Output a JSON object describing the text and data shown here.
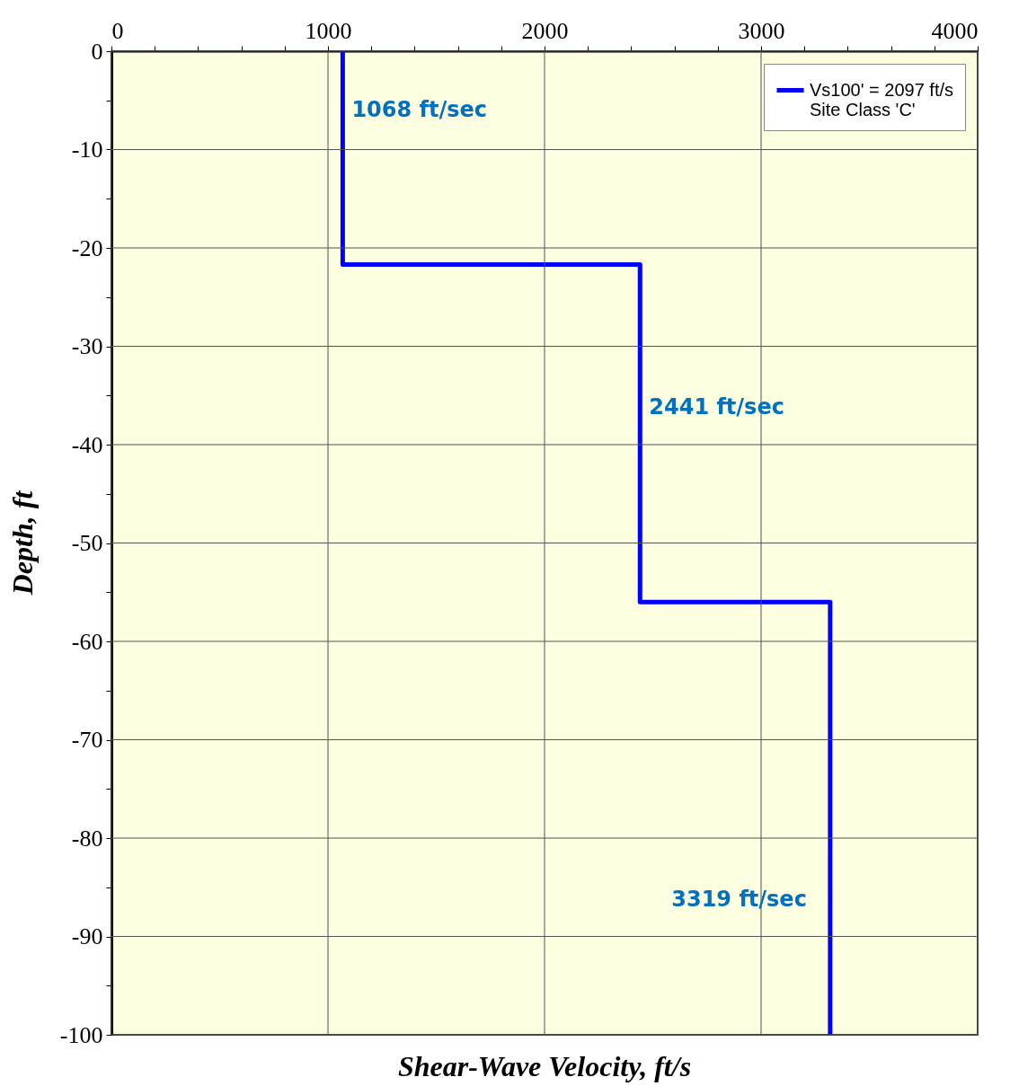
{
  "chart_data": {
    "type": "line",
    "xlabel": "Shear-Wave Velocity, ft/s",
    "ylabel": "Depth, ft",
    "series": [
      {
        "name": "Vs100' = 2097 ft/s",
        "color": "#0000ff",
        "x": [
          1068,
          1068,
          2441,
          2441,
          3319,
          3319
        ],
        "values": [
          0,
          -21.7,
          -21.7,
          -56,
          -56,
          -100
        ]
      }
    ],
    "annotations": [
      {
        "text": "1068 ft/sec",
        "x": 1068,
        "y": -6
      },
      {
        "text": "2441 ft/sec",
        "x": 2441,
        "y": -36.3
      },
      {
        "text": "3319 ft/sec",
        "x": 3319,
        "y": -86.3
      },
      "Site Class 'C'"
    ],
    "xlim": [
      0,
      4000
    ],
    "xticks": [
      0,
      {
        "value": 200,
        "label": null
      },
      {
        "value": 400,
        "label": null
      },
      {
        "value": 600,
        "label": null
      },
      {
        "value": 800,
        "label": null
      },
      1000,
      {
        "value": 1200,
        "label": null
      },
      {
        "value": 1400,
        "label": null
      },
      {
        "value": 1600,
        "label": null
      },
      {
        "value": 1800,
        "label": null
      },
      2000,
      {
        "value": 2200,
        "label": null
      },
      {
        "value": 2400,
        "label": null
      },
      {
        "value": 2600,
        "label": null
      },
      {
        "value": 2800,
        "label": null
      },
      3000,
      {
        "value": 3200,
        "label": null
      },
      {
        "value": 3400,
        "label": null
      },
      {
        "value": 3600,
        "label": null
      },
      {
        "value": 3800,
        "label": null
      },
      4000
    ],
    "ylim": [
      -100,
      0
    ],
    "yticks": [
      0,
      {
        "value": -5,
        "label": null
      },
      -10,
      {
        "value": -15,
        "label": null
      },
      -20,
      {
        "value": -25,
        "label": null
      },
      -30,
      {
        "value": -35,
        "label": null
      },
      -40,
      {
        "value": -45,
        "label": null
      },
      -50,
      {
        "value": -55,
        "label": null
      },
      -60,
      {
        "value": -65,
        "label": null
      },
      -70,
      {
        "value": -75,
        "label": null
      },
      -80,
      {
        "value": -85,
        "label": null
      },
      -90,
      {
        "value": -95,
        "label": null
      },
      -100
    ],
    "grid": true,
    "legend": "top right",
    "marker": "none",
    "line_style": "solid"
  }
}
